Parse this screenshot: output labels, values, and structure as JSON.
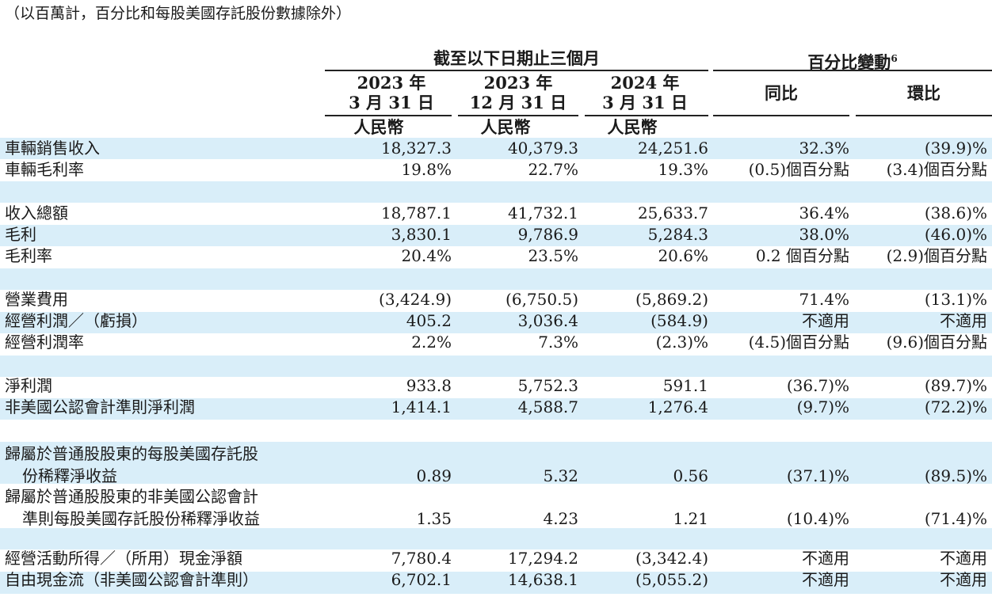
{
  "note": "（以百萬計，百分比和每股美國存託股份數據除外）",
  "header": {
    "group_period": "截至以下日期止三個月",
    "group_change": "百分比變動",
    "group_change_sup": "6",
    "col1_line1": "2023 年",
    "col1_line2": "3 月 31 日",
    "col2_line1": "2023 年",
    "col2_line2": "12 月 31 日",
    "col3_line1": "2024 年",
    "col3_line2": "3 月 31 日",
    "currency": "人民幣",
    "yoy": "同比",
    "qoq": "環比"
  },
  "rows": [
    {
      "label": "車輛銷售收入",
      "c1": "18,327.3",
      "c2": "40,379.3",
      "c3": "24,251.6",
      "yoy": "32.3%",
      "qoq": "(39.9)%"
    },
    {
      "label": "車輛毛利率",
      "c1": "19.8%",
      "c2": "22.7%",
      "c3": "19.3%",
      "yoy": "(0.5)個百分點",
      "qoq": "(3.4)個百分點"
    },
    {
      "label": "收入總額",
      "c1": "18,787.1",
      "c2": "41,732.1",
      "c3": "25,633.7",
      "yoy": "36.4%",
      "qoq": "(38.6)%"
    },
    {
      "label": "毛利",
      "c1": "3,830.1",
      "c2": "9,786.9",
      "c3": "5,284.3",
      "yoy": "38.0%",
      "qoq": "(46.0)%"
    },
    {
      "label": "毛利率",
      "c1": "20.4%",
      "c2": "23.5%",
      "c3": "20.6%",
      "yoy": "0.2 個百分點",
      "qoq": "(2.9)個百分點"
    },
    {
      "label": "營業費用",
      "c1": "(3,424.9)",
      "c2": "(6,750.5)",
      "c3": "(5,869.2)",
      "yoy": "71.4%",
      "qoq": "(13.1)%"
    },
    {
      "label": "經營利潤／（虧損）",
      "c1": "405.2",
      "c2": "3,036.4",
      "c3": "(584.9)",
      "yoy": "不適用",
      "qoq": "不適用"
    },
    {
      "label": "經營利潤率",
      "c1": "2.2%",
      "c2": "7.3%",
      "c3": "(2.3)%",
      "yoy": "(4.5)個百分點",
      "qoq": "(9.6)個百分點"
    },
    {
      "label": "淨利潤",
      "c1": "933.8",
      "c2": "5,752.3",
      "c3": "591.1",
      "yoy": "(36.7)%",
      "qoq": "(89.7)%"
    },
    {
      "label": "非美國公認會計準則淨利潤",
      "c1": "1,414.1",
      "c2": "4,588.7",
      "c3": "1,276.4",
      "yoy": "(9.7)%",
      "qoq": "(72.2)%"
    },
    {
      "label": "歸屬於普通股股東的每股美國存託股",
      "label2": "份稀釋淨收益",
      "c1": "0.89",
      "c2": "5.32",
      "c3": "0.56",
      "yoy": "(37.1)%",
      "qoq": "(89.5)%"
    },
    {
      "label": "歸屬於普通股股東的非美國公認會計",
      "label2": "準則每股美國存託股份稀釋淨收益",
      "c1": "1.35",
      "c2": "4.23",
      "c3": "1.21",
      "yoy": "(10.4)%",
      "qoq": "(71.4)%"
    },
    {
      "label": "經營活動所得／（所用）現金淨額",
      "c1": "7,780.4",
      "c2": "17,294.2",
      "c3": "(3,342.4)",
      "yoy": "不適用",
      "qoq": "不適用"
    },
    {
      "label": "自由現金流（非美國公認會計準則）",
      "c1": "6,702.1",
      "c2": "14,638.1",
      "c3": "(5,055.2)",
      "yoy": "不適用",
      "qoq": "不適用"
    }
  ]
}
